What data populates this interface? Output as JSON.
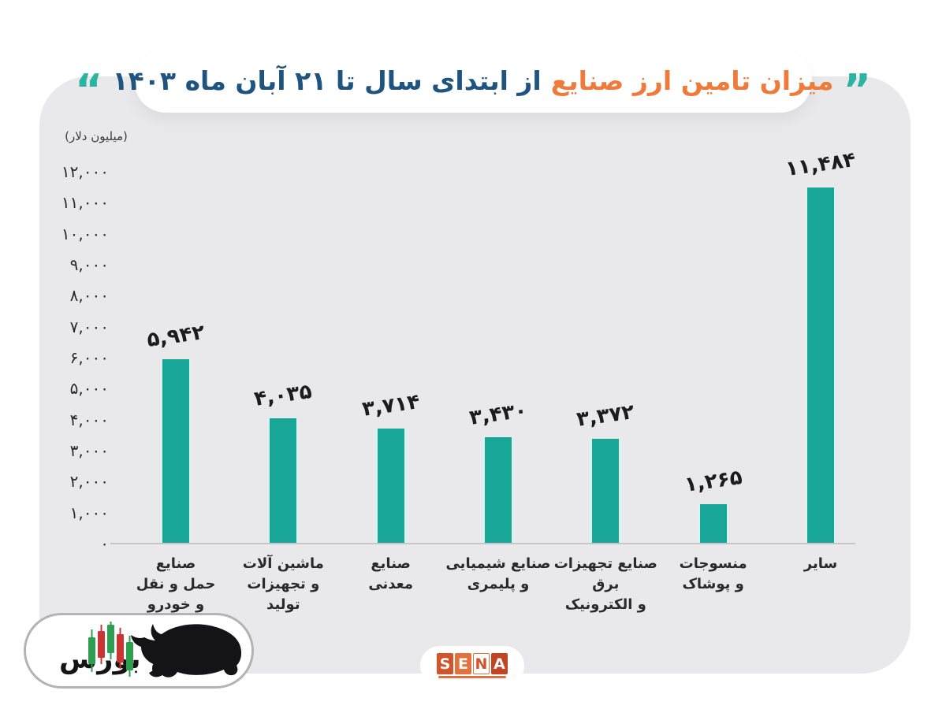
{
  "page": {
    "background_color": "#ffffff",
    "card_color": "#e9e8ea"
  },
  "title": {
    "quote_right": "”",
    "text_orange": "میزان تامین ارز صنایع",
    "text_blue": "از ابتدای سال تا ۲۱ آبان ماه ۱۴۰۳",
    "quote_left": "“",
    "orange_color": "#ef7a3a",
    "blue_color": "#1f5380",
    "quote_color": "#2ab5a2"
  },
  "chart_data": {
    "type": "bar",
    "title": "میزان تامین ارز صنایع از ابتدای سال تا ۲۱ آبان ماه ۱۴۰۳",
    "unit_label": "(میلیون دلار)",
    "categories": [
      "صنایع حمل و نقل و خودرو",
      "ماشین آلات و تجهیزات تولید",
      "صنایع معدنی",
      "صنایع شیمیایی و پلیمری",
      "صنایع تجهیزات برق و الکترونیک",
      "منسوجات و پوشاک",
      "سایر"
    ],
    "category_lines": [
      [
        "صنایع",
        "حمل و نقل",
        "و خودرو"
      ],
      [
        "ماشین آلات",
        "و تجهیزات",
        "تولید"
      ],
      [
        "صنایع",
        "معدنی"
      ],
      [
        "صنایع شیمیایی",
        "و پلیمری"
      ],
      [
        "صنایع تجهیزات",
        "برق",
        "و الکترونیک"
      ],
      [
        "منسوجات",
        "و پوشاک"
      ],
      [
        "سایر"
      ]
    ],
    "values": [
      5942,
      4035,
      3714,
      3430,
      3372,
      1265,
      11484
    ],
    "value_labels": [
      "۵,۹۴۲",
      "۴,۰۳۵",
      "۳,۷۱۴",
      "۳,۴۳۰",
      "۳,۳۷۲",
      "۱,۲۶۵",
      "۱۱,۴۸۴"
    ],
    "y_tick_values": [
      12000,
      11000,
      10000,
      9000,
      8000,
      7000,
      6000,
      5000,
      4000,
      3000,
      2000,
      1000,
      0
    ],
    "y_tick_labels": [
      "۱۲,۰۰۰",
      "۱۱,۰۰۰",
      "۱۰,۰۰۰",
      "۹,۰۰۰",
      "۸,۰۰۰",
      "۷,۰۰۰",
      "۶,۰۰۰",
      "۵,۰۰۰",
      "۴,۰۰۰",
      "۳,۰۰۰",
      "۲,۰۰۰",
      "۱,۰۰۰",
      "۰"
    ],
    "ylim": [
      0,
      12000
    ],
    "grid": false,
    "legend": null,
    "bar_color": "#17a698"
  },
  "footer": {
    "nabz_logo": {
      "brand_text": "نبض بورس",
      "candle_up_color": "#2e9e4f",
      "candle_down_color": "#cc3434",
      "bull_color": "#141416"
    },
    "sena_logo": {
      "letters": [
        "S",
        "E",
        "N",
        "A"
      ],
      "block_colors": [
        "#d2542b",
        "#e4703b",
        "#ffffff",
        "#c34424"
      ],
      "letter_colors": [
        "#ffffff",
        "#ffffff",
        "#d2542b",
        "#ffffff"
      ],
      "underline_color": "#e07040"
    }
  }
}
